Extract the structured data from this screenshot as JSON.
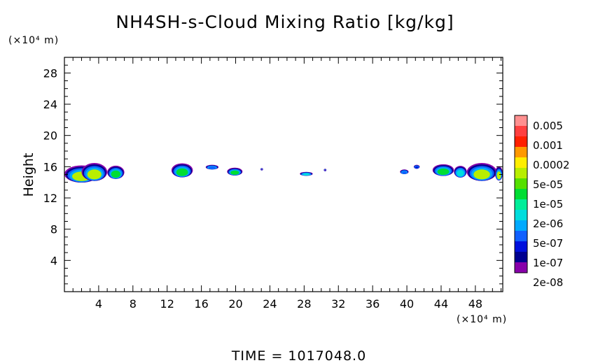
{
  "chart_data": {
    "type": "heatmap",
    "title": "NH4SH-s-Cloud Mixing Ratio [kg/kg]",
    "ylabel": "Height",
    "xlabel": "",
    "x_unit_label": "(×10⁴ m)",
    "y_unit_label": "(×10⁴ m)",
    "xlim": [
      0,
      51.2
    ],
    "ylim": [
      0,
      30
    ],
    "x_ticks": [
      4,
      8,
      12,
      16,
      20,
      24,
      28,
      32,
      36,
      40,
      44,
      48
    ],
    "x_tick_labels": [
      "4",
      "8",
      "12",
      "16",
      "20",
      "24",
      "28",
      "32",
      "36",
      "40",
      "44",
      "48"
    ],
    "y_ticks": [
      4,
      8,
      12,
      16,
      20,
      24,
      28
    ],
    "y_tick_labels": [
      "4",
      "8",
      "12",
      "16",
      "20",
      "24",
      "28"
    ],
    "colorbar": {
      "labels": [
        "0.005",
        "0.001",
        "0.0002",
        "5e-05",
        "1e-05",
        "2e-06",
        "5e-07",
        "1e-07",
        "2e-08"
      ],
      "colors": [
        "#ff9090",
        "#ff4040",
        "#ff2000",
        "#ff9900",
        "#ffee00",
        "#b8ee00",
        "#55e000",
        "#00dd33",
        "#00ee99",
        "#00dddd",
        "#00aaff",
        "#1060ff",
        "#0010dd",
        "#000090",
        "#8800aa"
      ]
    },
    "cloud_features": [
      {
        "x": [
          0,
          4
        ],
        "z": [
          13.8,
          16.0
        ],
        "level": "5e-05"
      },
      {
        "x": [
          2,
          5
        ],
        "z": [
          14.0,
          16.3
        ],
        "level": "5e-05"
      },
      {
        "x": [
          5,
          7
        ],
        "z": [
          14.3,
          16.0
        ],
        "level": "1e-05"
      },
      {
        "x": [
          12.5,
          15
        ],
        "z": [
          14.5,
          16.3
        ],
        "level": "1e-05"
      },
      {
        "x": [
          16.5,
          18
        ],
        "z": [
          15.6,
          16.2
        ],
        "level": "5e-07"
      },
      {
        "x": [
          19,
          20.8
        ],
        "z": [
          14.8,
          15.8
        ],
        "level": "1e-05"
      },
      {
        "x": [
          22.9,
          23.2
        ],
        "z": [
          15.5,
          15.8
        ],
        "level": "2e-08"
      },
      {
        "x": [
          27.5,
          29
        ],
        "z": [
          14.8,
          15.3
        ],
        "level": "2e-06"
      },
      {
        "x": [
          30.3,
          30.6
        ],
        "z": [
          15.4,
          15.7
        ],
        "level": "2e-08"
      },
      {
        "x": [
          39.2,
          40.2
        ],
        "z": [
          15.0,
          15.6
        ],
        "level": "5e-07"
      },
      {
        "x": [
          40.8,
          41.5
        ],
        "z": [
          15.7,
          16.2
        ],
        "level": "1e-07"
      },
      {
        "x": [
          43,
          45.5
        ],
        "z": [
          14.7,
          16.2
        ],
        "level": "1e-05"
      },
      {
        "x": [
          45.5,
          47
        ],
        "z": [
          14.5,
          16.0
        ],
        "level": "2e-06"
      },
      {
        "x": [
          47,
          50.5
        ],
        "z": [
          14.0,
          16.3
        ],
        "level": "5e-05"
      },
      {
        "x": [
          50.3,
          51.2
        ],
        "z": [
          14.1,
          15.9
        ],
        "level": "5e-05"
      }
    ]
  },
  "footer": {
    "time_text": "TIME =  1017048.0"
  }
}
